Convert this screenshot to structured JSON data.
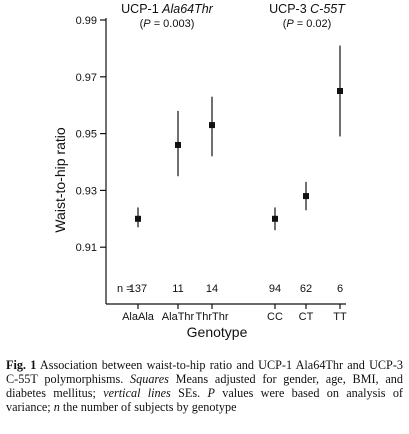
{
  "chart_data": {
    "type": "scatter",
    "ylabel": "Waist-to-hip ratio",
    "xlabel": "Genotype",
    "ylim": [
      0.89,
      0.99
    ],
    "yticks": [
      0.91,
      0.93,
      0.95,
      0.97,
      0.99
    ],
    "ytick_labels": [
      "0.91",
      "0.93",
      "0.95",
      "0.97",
      "0.99"
    ],
    "n_prefix": "n =",
    "panels": [
      {
        "title_prefix": "UCP-1",
        "title_variant": "Ala64Thr",
        "p_symbol": "P",
        "p_value": "= 0.003",
        "categories": [
          "AlaAla",
          "AlaThr",
          "ThrThr"
        ],
        "n": [
          "137",
          "11",
          "14"
        ],
        "mean": [
          0.92,
          0.946,
          0.953
        ],
        "se_lower": [
          0.917,
          0.935,
          0.942
        ],
        "se_upper": [
          0.924,
          0.958,
          0.963
        ]
      },
      {
        "title_prefix": "UCP-3",
        "title_variant": "C-55T",
        "p_symbol": "P",
        "p_value": "= 0.02",
        "categories": [
          "CC",
          "CT",
          "TT"
        ],
        "n": [
          "94",
          "62",
          "6"
        ],
        "mean": [
          0.92,
          0.928,
          0.965
        ],
        "se_lower": [
          0.916,
          0.923,
          0.949
        ],
        "se_upper": [
          0.924,
          0.933,
          0.981
        ]
      }
    ]
  },
  "caption": {
    "lead": "Fig. 1",
    "part1": " Association between waist-to-hip ratio and UCP-1 Ala64Thr and UCP-3 C-55T polymorphisms. ",
    "term_squares": "Squares",
    "part2": " Means adjusted for gender, age, BMI, and diabetes mellitus; ",
    "term_vertical": "vertical lines",
    "part3": " SEs. ",
    "term_p": "P",
    "part4": " values were based on analysis of variance; ",
    "term_n": "n",
    "part5": " the number of subjects by genotype"
  }
}
